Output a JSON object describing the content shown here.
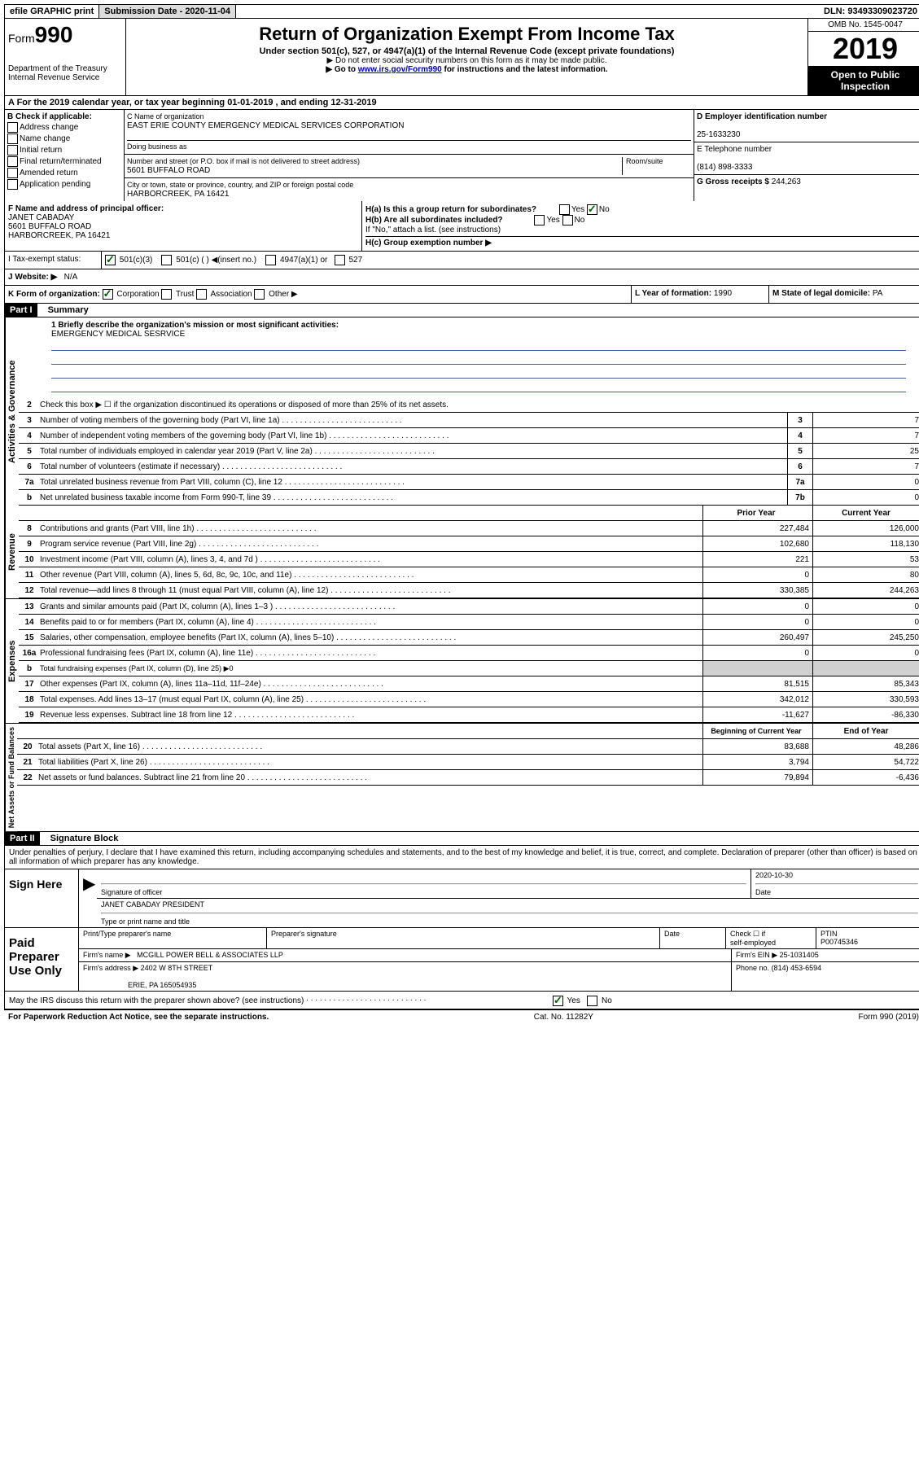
{
  "top": {
    "efile": "efile GRAPHIC print",
    "submission": "Submission Date - 2020-11-04",
    "dln": "DLN: 93493309023720"
  },
  "header": {
    "form_prefix": "Form",
    "form_num": "990",
    "dept": "Department of the Treasury",
    "irs": "Internal Revenue Service",
    "title": "Return of Organization Exempt From Income Tax",
    "sub1": "Under section 501(c), 527, or 4947(a)(1) of the Internal Revenue Code (except private foundations)",
    "sub2": "▶ Do not enter social security numbers on this form as it may be made public.",
    "sub3_pre": "▶ Go to ",
    "sub3_link": "www.irs.gov/Form990",
    "sub3_post": " for instructions and the latest information.",
    "omb": "OMB No. 1545-0047",
    "year": "2019",
    "open": "Open to Public Inspection"
  },
  "row_a": "A For the 2019 calendar year, or tax year beginning 01-01-2019   , and ending 12-31-2019",
  "box_b": {
    "title": "B Check if applicable:",
    "opts": [
      "Address change",
      "Name change",
      "Initial return",
      "Final return/terminated",
      "Amended return",
      "Application pending"
    ]
  },
  "box_c": {
    "label_name": "C Name of organization",
    "org_name": "EAST ERIE COUNTY EMERGENCY MEDICAL SERVICES CORPORATION",
    "dba_label": "Doing business as",
    "addr_label": "Number and street (or P.O. box if mail is not delivered to street address)",
    "room_label": "Room/suite",
    "addr": "5601 BUFFALO ROAD",
    "city_label": "City or town, state or province, country, and ZIP or foreign postal code",
    "city": "HARBORCREEK, PA  16421"
  },
  "box_d": {
    "label": "D Employer identification number",
    "val": "25-1633230"
  },
  "box_e": {
    "label": "E Telephone number",
    "val": "(814) 898-3333"
  },
  "box_g": {
    "label": "G Gross receipts $",
    "val": "244,263"
  },
  "box_f": {
    "label": "F Name and address of principal officer:",
    "name": "JANET CABADAY",
    "addr1": "5601 BUFFALO ROAD",
    "addr2": "HARBORCREEK, PA  16421"
  },
  "box_h": {
    "a": "H(a)  Is this a group return for subordinates?",
    "b": "H(b)  Are all subordinates included?",
    "b2": "If \"No,\" attach a list. (see instructions)",
    "c": "H(c)  Group exemption number ▶"
  },
  "tax_status": {
    "label": "Tax-exempt status:",
    "o1": "501(c)(3)",
    "o2": "501(c) (  ) ◀(insert no.)",
    "o3": "4947(a)(1) or",
    "o4": "527"
  },
  "box_j": {
    "label": "J Website: ▶",
    "val": "N/A"
  },
  "box_k": {
    "label": "K Form of organization:",
    "o1": "Corporation",
    "o2": "Trust",
    "o3": "Association",
    "o4": "Other ▶"
  },
  "box_l": {
    "label": "L Year of formation:",
    "val": "1990"
  },
  "box_m": {
    "label": "M State of legal domicile:",
    "val": "PA"
  },
  "part1": {
    "label": "Part I",
    "title": "Summary"
  },
  "mission": {
    "label": "1 Briefly describe the organization's mission or most significant activities:",
    "text": "EMERGENCY MEDICAL SESRVICE"
  },
  "line2": "Check this box ▶ ☐ if the organization discontinued its operations or disposed of more than 25% of its net assets.",
  "summary_rows": [
    {
      "n": "3",
      "t": "Number of voting members of the governing body (Part VI, line 1a)",
      "b": "3",
      "v": "7"
    },
    {
      "n": "4",
      "t": "Number of independent voting members of the governing body (Part VI, line 1b)",
      "b": "4",
      "v": "7"
    },
    {
      "n": "5",
      "t": "Total number of individuals employed in calendar year 2019 (Part V, line 2a)",
      "b": "5",
      "v": "25"
    },
    {
      "n": "6",
      "t": "Total number of volunteers (estimate if necessary)",
      "b": "6",
      "v": "7"
    },
    {
      "n": "7a",
      "t": "Total unrelated business revenue from Part VIII, column (C), line 12",
      "b": "7a",
      "v": "0"
    },
    {
      "n": "b",
      "t": "Net unrelated business taxable income from Form 990-T, line 39",
      "b": "7b",
      "v": "0"
    }
  ],
  "col_headers": {
    "prior": "Prior Year",
    "current": "Current Year"
  },
  "revenue_rows": [
    {
      "n": "8",
      "t": "Contributions and grants (Part VIII, line 1h)",
      "p": "227,484",
      "c": "126,000"
    },
    {
      "n": "9",
      "t": "Program service revenue (Part VIII, line 2g)",
      "p": "102,680",
      "c": "118,130"
    },
    {
      "n": "10",
      "t": "Investment income (Part VIII, column (A), lines 3, 4, and 7d )",
      "p": "221",
      "c": "53"
    },
    {
      "n": "11",
      "t": "Other revenue (Part VIII, column (A), lines 5, 6d, 8c, 9c, 10c, and 11e)",
      "p": "0",
      "c": "80"
    },
    {
      "n": "12",
      "t": "Total revenue—add lines 8 through 11 (must equal Part VIII, column (A), line 12)",
      "p": "330,385",
      "c": "244,263"
    }
  ],
  "expense_rows": [
    {
      "n": "13",
      "t": "Grants and similar amounts paid (Part IX, column (A), lines 1–3 )",
      "p": "0",
      "c": "0"
    },
    {
      "n": "14",
      "t": "Benefits paid to or for members (Part IX, column (A), line 4)",
      "p": "0",
      "c": "0"
    },
    {
      "n": "15",
      "t": "Salaries, other compensation, employee benefits (Part IX, column (A), lines 5–10)",
      "p": "260,497",
      "c": "245,250"
    },
    {
      "n": "16a",
      "t": "Professional fundraising fees (Part IX, column (A), line 11e)",
      "p": "0",
      "c": "0"
    }
  ],
  "line16b": {
    "n": "b",
    "t": "Total fundraising expenses (Part IX, column (D), line 25) ▶0"
  },
  "expense_rows2": [
    {
      "n": "17",
      "t": "Other expenses (Part IX, column (A), lines 11a–11d, 11f–24e)",
      "p": "81,515",
      "c": "85,343"
    },
    {
      "n": "18",
      "t": "Total expenses. Add lines 13–17 (must equal Part IX, column (A), line 25)",
      "p": "342,012",
      "c": "330,593"
    },
    {
      "n": "19",
      "t": "Revenue less expenses. Subtract line 18 from line 12",
      "p": "-11,627",
      "c": "-86,330"
    }
  ],
  "na_headers": {
    "begin": "Beginning of Current Year",
    "end": "End of Year"
  },
  "na_rows": [
    {
      "n": "20",
      "t": "Total assets (Part X, line 16)",
      "p": "83,688",
      "c": "48,286"
    },
    {
      "n": "21",
      "t": "Total liabilities (Part X, line 26)",
      "p": "3,794",
      "c": "54,722"
    },
    {
      "n": "22",
      "t": "Net assets or fund balances. Subtract line 21 from line 20",
      "p": "79,894",
      "c": "-6,436"
    }
  ],
  "section_labels": {
    "gov": "Activities & Governance",
    "rev": "Revenue",
    "exp": "Expenses",
    "na": "Net Assets or Fund Balances"
  },
  "part2": {
    "label": "Part II",
    "title": "Signature Block"
  },
  "penalty": "Under penalties of perjury, I declare that I have examined this return, including accompanying schedules and statements, and to the best of my knowledge and belief, it is true, correct, and complete. Declaration of preparer (other than officer) is based on all information of which preparer has any knowledge.",
  "sign": {
    "here": "Sign Here",
    "sig_of": "Signature of officer",
    "date_lbl": "Date",
    "date": "2020-10-30",
    "name": "JANET CABADAY PRESIDENT",
    "type_lbl": "Type or print name and title"
  },
  "paid": {
    "label": "Paid Preparer Use Only",
    "c1": "Print/Type preparer's name",
    "c2": "Preparer's signature",
    "c3": "Date",
    "c4_a": "Check ☐ if",
    "c4_b": "self-employed",
    "c5": "PTIN",
    "ptin": "P00745346",
    "firm_lbl": "Firm's name  ▶",
    "firm": "MCGILL POWER BELL & ASSOCIATES LLP",
    "ein_lbl": "Firm's EIN ▶",
    "ein": "25-1031405",
    "addr_lbl": "Firm's address ▶",
    "addr1": "2402 W 8TH STREET",
    "addr2": "ERIE, PA  165054935",
    "phone_lbl": "Phone no.",
    "phone": "(814) 453-6594"
  },
  "discuss": "May the IRS discuss this return with the preparer shown above? (see instructions)",
  "footer": {
    "pra": "For Paperwork Reduction Act Notice, see the separate instructions.",
    "cat": "Cat. No. 11282Y",
    "form": "Form 990 (2019)"
  }
}
